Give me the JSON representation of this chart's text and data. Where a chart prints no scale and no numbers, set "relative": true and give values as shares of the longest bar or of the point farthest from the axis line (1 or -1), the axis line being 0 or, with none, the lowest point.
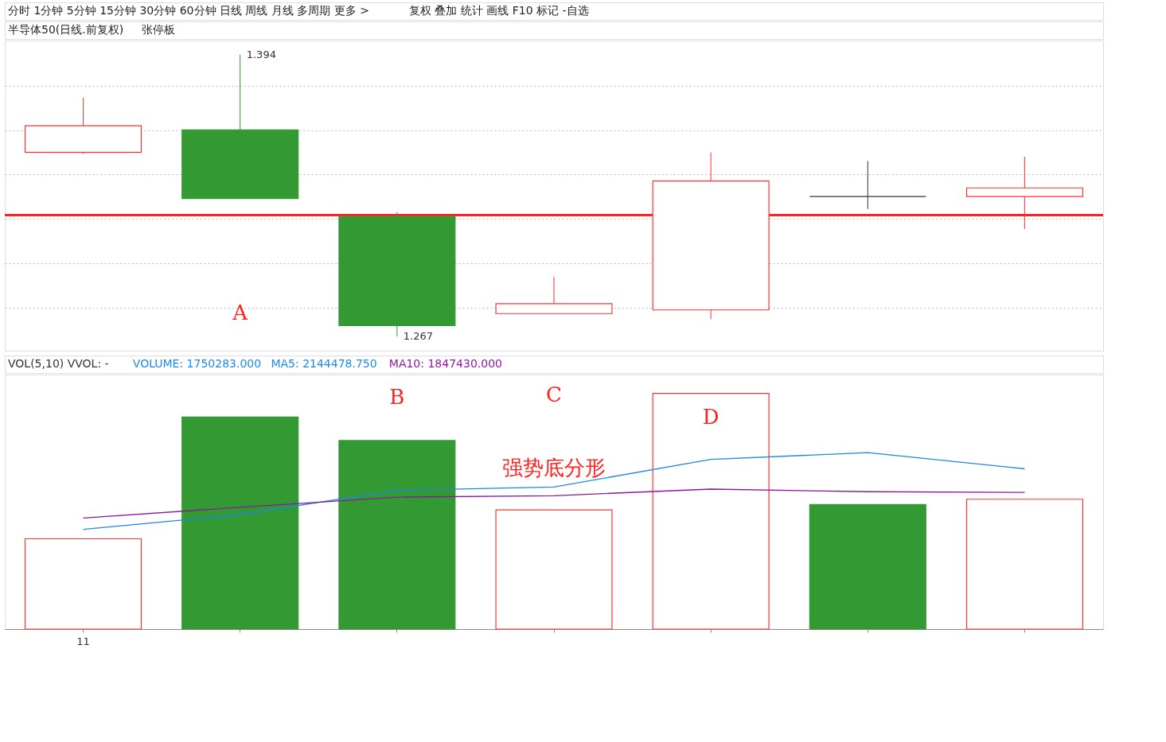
{
  "chart_data": [
    {
      "type": "candlestick",
      "title": "半导体50(日线.前复权)",
      "subtitle": "张停板",
      "tick_labels": false,
      "grid": "y",
      "yticks": [
        {
          "value": 1.28,
          "label": null
        },
        {
          "value": 1.3,
          "label": null
        },
        {
          "value": 1.32,
          "label": null
        },
        {
          "value": 1.34,
          "label": null
        },
        {
          "value": 1.36,
          "label": null
        },
        {
          "value": 1.38,
          "label": null
        }
      ],
      "categories": [
        null,
        null,
        null,
        null,
        null,
        null,
        null
      ],
      "ohlc": [
        [
          1.35,
          1.3747,
          1.3494,
          1.362
        ],
        [
          1.3601,
          1.394,
          1.3292,
          1.3292
        ],
        [
          1.3211,
          1.3231,
          1.267,
          1.272
        ],
        [
          1.2774,
          1.2939,
          1.2774,
          1.2818
        ],
        [
          1.279,
          1.35,
          1.2748,
          1.3371
        ],
        [
          1.3301,
          1.3461,
          1.3245,
          1.3301
        ],
        [
          1.3301,
          1.348,
          1.3155,
          1.334
        ]
      ],
      "colors": [
        "#ff3232",
        "#339933",
        "#339933",
        "#ff3232",
        "#ff3232",
        "#333333",
        "#ff3232"
      ],
      "ref_lines": [
        {
          "axis": "y",
          "value": 1.3217,
          "color": "#ff2020"
        }
      ],
      "annotations": [
        "分时 1分钟 5分钟 15分钟 30分钟 60分钟 日线 周线 月线 多周期 更多 >",
        "复权 叠加 统计 画线 F10 标记 -自选",
        "1.394",
        "1.267",
        "A"
      ]
    },
    {
      "type": "bar",
      "title": "VOL(5,10) VVOL: -",
      "relative": true,
      "legend": "top left",
      "tick_labels": "x",
      "categories": [
        null,
        null,
        null,
        null,
        null,
        null,
        null
      ],
      "series": [
        {
          "type": "bar",
          "colors": [
            "#ff3232",
            "#339933",
            "#339933",
            "#ff3232",
            "#ff3232",
            "#339933",
            "#ff3232"
          ],
          "values": [
            0.383,
            0.9,
            0.8,
            0.506,
            1,
            0.529,
            0.551
          ]
        },
        {
          "name": "MA5: 2144478.750",
          "type": "line",
          "color": "#1e88e5",
          "values": [
            0.423,
            0.486,
            0.589,
            0.603,
            0.72,
            0.749,
            0.68
          ]
        },
        {
          "name": "MA10: 1847430.000",
          "type": "line",
          "color": "#8b1a9b",
          "values": [
            0.471,
            0.517,
            0.56,
            0.566,
            0.594,
            0.583,
            0.58
          ]
        }
      ],
      "annotations": [
        "VOLUME: 1750283.000",
        "B",
        "C",
        "D",
        "强势底分形",
        "11"
      ]
    }
  ]
}
